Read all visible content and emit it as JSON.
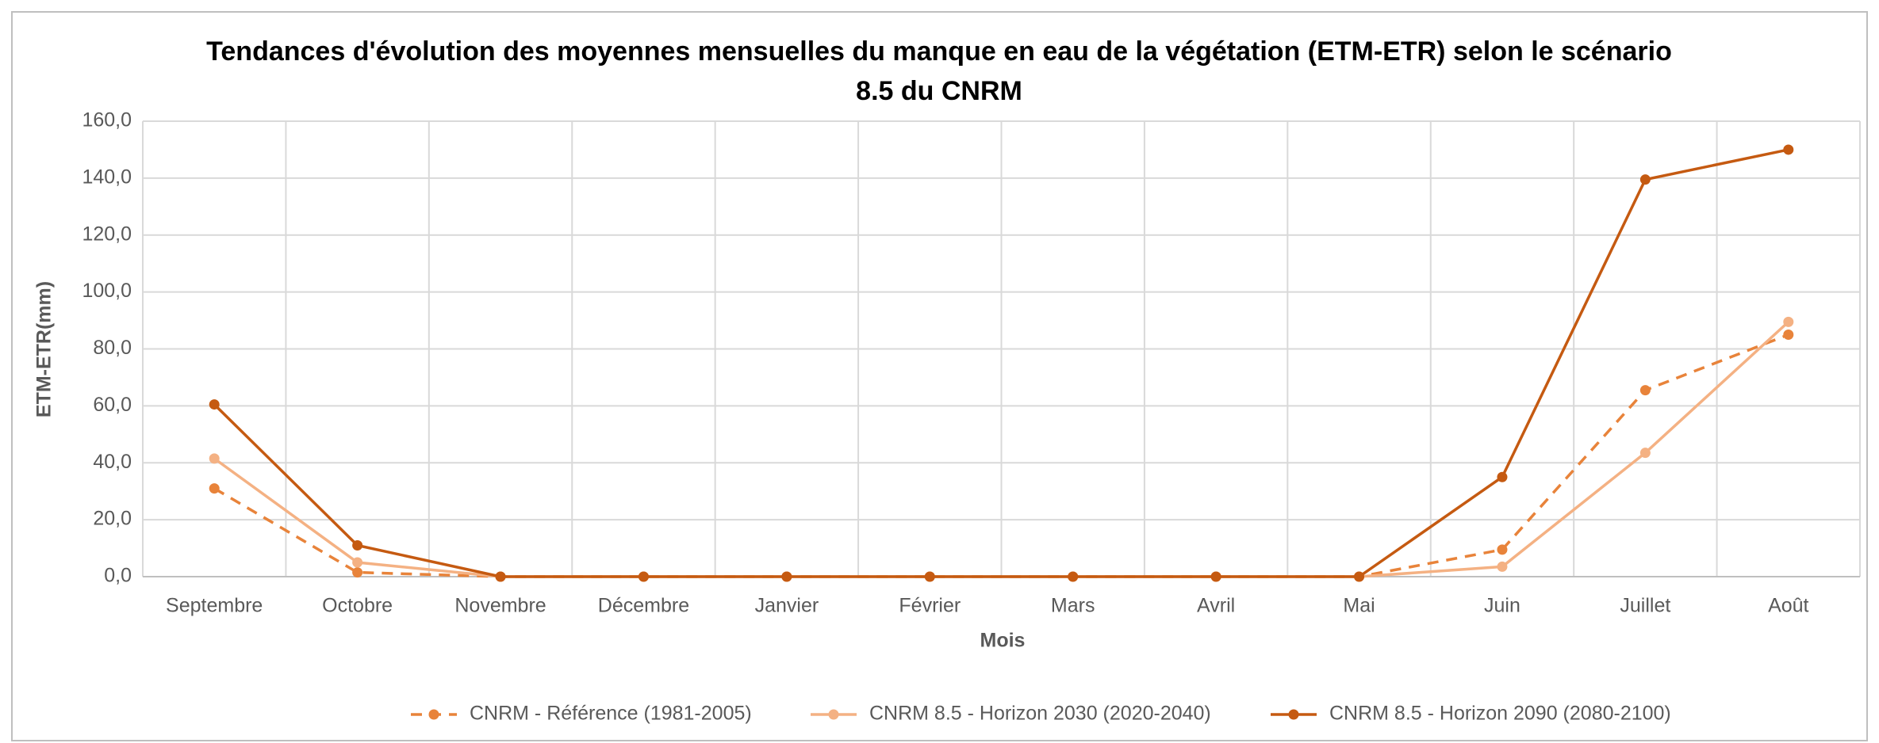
{
  "chart_data": {
    "type": "line",
    "title": "Tendances d'évolution des moyennes mensuelles du manque en eau de la végétation (ETM-ETR) selon le scénario 8.5 du CNRM",
    "x_label": "Mois",
    "y_label": "ETM-ETR(mm)",
    "categories": [
      "Septembre",
      "Octobre",
      "Novembre",
      "Décembre",
      "Janvier",
      "Février",
      "Mars",
      "Avril",
      "Mai",
      "Juin",
      "Juillet",
      "Août"
    ],
    "series": [
      {
        "name": "CNRM - Référence (1981-2005)",
        "color": "#e8833a",
        "line_style": "dashed",
        "values": [
          31,
          1.5,
          0,
          0,
          0,
          0,
          0,
          0,
          0,
          9.5,
          65.5,
          85
        ]
      },
      {
        "name": "CNRM 8.5 - Horizon 2030 (2020-2040)",
        "color": "#f4b183",
        "line_style": "solid",
        "values": [
          41.5,
          5,
          0,
          0,
          0,
          0,
          0,
          0,
          0,
          3.5,
          43.5,
          89.5
        ]
      },
      {
        "name": "CNRM 8.5 - Horizon 2090 (2080-2100)",
        "color": "#c55a11",
        "line_style": "solid",
        "values": [
          60.5,
          11,
          0,
          0,
          0,
          0,
          0,
          0,
          0,
          35,
          139.5,
          150
        ]
      }
    ],
    "ylim": [
      0,
      160
    ],
    "yticks": [
      {
        "value": 0,
        "label": "0,0"
      },
      {
        "value": 20,
        "label": "20,0"
      },
      {
        "value": 40,
        "label": "40,0"
      },
      {
        "value": 60,
        "label": "60,0"
      },
      {
        "value": 80,
        "label": "80,0"
      },
      {
        "value": 100,
        "label": "100,0"
      },
      {
        "value": 120,
        "label": "120,0"
      },
      {
        "value": 140,
        "label": "140,0"
      },
      {
        "value": 160,
        "label": "160,0"
      }
    ],
    "grid": true,
    "legend": "bottom"
  }
}
